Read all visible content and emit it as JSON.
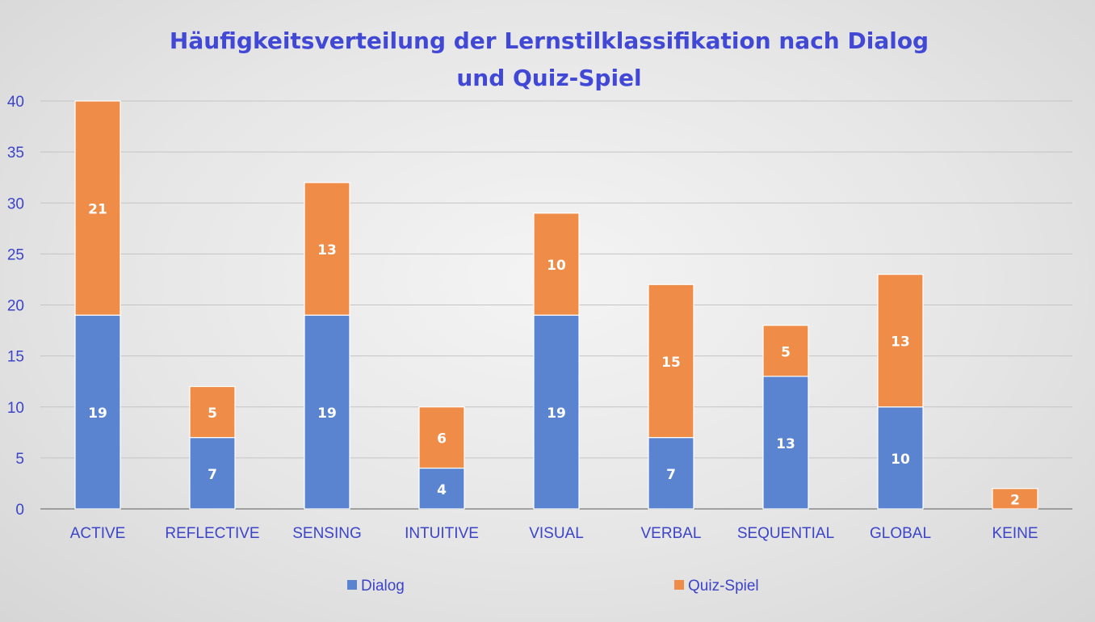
{
  "chart_data": {
    "type": "bar",
    "stacked": true,
    "title": "Häufigkeitsverteilung der Lernstilklassifikation nach Dialog und Quiz-Spiel",
    "categories": [
      "ACTIVE",
      "REFLECTIVE",
      "SENSING",
      "INTUITIVE",
      "VISUAL",
      "VERBAL",
      "SEQUENTIAL",
      "GLOBAL",
      "KEINE"
    ],
    "series": [
      {
        "name": "Dialog",
        "color": "#5b84d0",
        "values": [
          19,
          7,
          19,
          4,
          19,
          7,
          13,
          10,
          0
        ]
      },
      {
        "name": "Quiz-Spiel",
        "color": "#ee8c48",
        "values": [
          21,
          5,
          13,
          6,
          10,
          15,
          5,
          13,
          2
        ]
      }
    ],
    "ylim": [
      0,
      40
    ],
    "yticks": [
      0,
      5,
      10,
      15,
      20,
      25,
      30,
      35,
      40
    ],
    "grid": true,
    "legend": "bottom",
    "axis_text_color": "#3c44c8",
    "title_color": "#4248d6"
  }
}
